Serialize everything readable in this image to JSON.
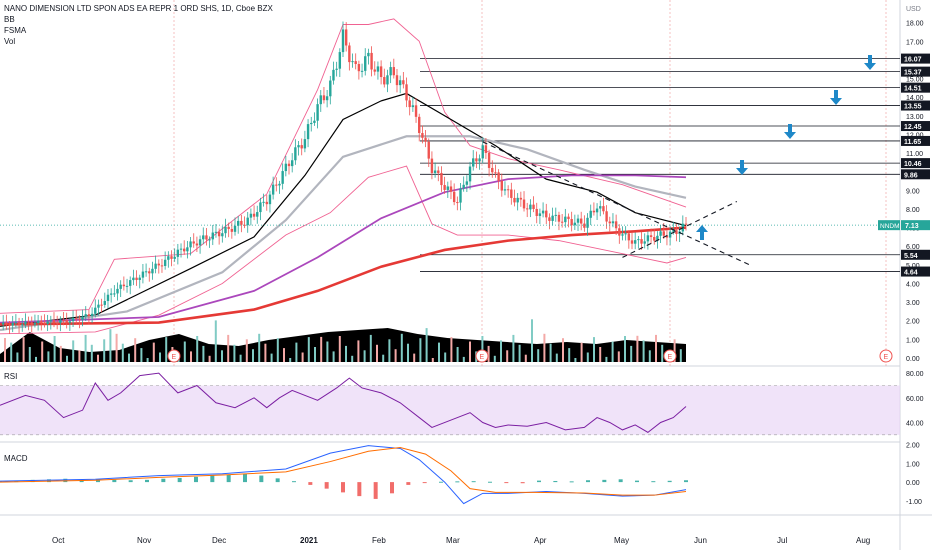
{
  "header": {
    "symbol_title": "NANO DIMENSION LTD SPON ADS EA REPR 1 ORD SHS, 1D, Cboe BZX",
    "indicators": [
      "BB",
      "FSMA",
      "Vol"
    ]
  },
  "colors": {
    "up": "#26a69a",
    "down": "#ef5350",
    "sma_short": "#000000",
    "sma_mid": "#b2b5be",
    "sma_long": "#ab47bc",
    "sma_200": "#e53935",
    "bb": "#f06292",
    "rsi": "#7b1fa2",
    "rsi_band": "#e9d7f7",
    "macd": "#2962ff",
    "signal": "#ff6d00",
    "arrow": "#1e88c8",
    "last_price": "#26a69a"
  },
  "chart_data": [
    {
      "type": "line",
      "pane": "price",
      "title": "NANO DIMENSION LTD SPON ADS EA REPR 1 ORD SHS, 1D, Cboe BZX",
      "y_axis_unit": "USD",
      "y_ticks": [
        0.0,
        1.0,
        2.0,
        3.0,
        4.0,
        5.0,
        6.0,
        7.0,
        8.0,
        9.0,
        10.0,
        11.0,
        12.0,
        13.0,
        14.0,
        15.0,
        16.0,
        17.0,
        18.0,
        19.0
      ],
      "ylim": [
        0,
        19
      ],
      "x_month_labels": [
        "Oct",
        "Nov",
        "Dec",
        "2021",
        "Feb",
        "Mar",
        "Apr",
        "May",
        "Jun",
        "Jul",
        "Aug"
      ],
      "close_series": [
        {
          "t": 0,
          "v": 1.8
        },
        {
          "t": 12,
          "v": 1.9
        },
        {
          "t": 22,
          "v": 2.0
        },
        {
          "t": 28,
          "v": 2.3
        },
        {
          "t": 36,
          "v": 3.6
        },
        {
          "t": 44,
          "v": 4.4
        },
        {
          "t": 52,
          "v": 5.2
        },
        {
          "t": 58,
          "v": 5.9
        },
        {
          "t": 64,
          "v": 6.4
        },
        {
          "t": 72,
          "v": 6.9
        },
        {
          "t": 78,
          "v": 7.4
        },
        {
          "t": 84,
          "v": 8.5
        },
        {
          "t": 88,
          "v": 9.6
        },
        {
          "t": 92,
          "v": 10.8
        },
        {
          "t": 96,
          "v": 11.8
        },
        {
          "t": 100,
          "v": 13.5
        },
        {
          "t": 104,
          "v": 14.6
        },
        {
          "t": 108,
          "v": 17.2
        },
        {
          "t": 112,
          "v": 15.4
        },
        {
          "t": 116,
          "v": 16.1
        },
        {
          "t": 120,
          "v": 15.0
        },
        {
          "t": 124,
          "v": 15.3
        },
        {
          "t": 128,
          "v": 14.1
        },
        {
          "t": 132,
          "v": 12.4
        },
        {
          "t": 136,
          "v": 10.2
        },
        {
          "t": 140,
          "v": 9.2
        },
        {
          "t": 144,
          "v": 8.4
        },
        {
          "t": 148,
          "v": 10.2
        },
        {
          "t": 152,
          "v": 11.2
        },
        {
          "t": 156,
          "v": 9.7
        },
        {
          "t": 160,
          "v": 8.8
        },
        {
          "t": 166,
          "v": 8.1
        },
        {
          "t": 172,
          "v": 7.6
        },
        {
          "t": 178,
          "v": 7.4
        },
        {
          "t": 184,
          "v": 7.2
        },
        {
          "t": 188,
          "v": 8.2
        },
        {
          "t": 192,
          "v": 7.3
        },
        {
          "t": 196,
          "v": 6.6
        },
        {
          "t": 200,
          "v": 6.2
        },
        {
          "t": 204,
          "v": 6.4
        },
        {
          "t": 208,
          "v": 6.6
        },
        {
          "t": 212,
          "v": 6.7
        },
        {
          "t": 216,
          "v": 7.13
        }
      ],
      "series": [
        {
          "name": "SMA 20",
          "points": [
            [
              0,
              1.7
            ],
            [
              30,
              2.3
            ],
            [
              60,
              4.8
            ],
            [
              80,
              6.5
            ],
            [
              96,
              9.8
            ],
            [
              108,
              12.8
            ],
            [
              120,
              13.8
            ],
            [
              128,
              14.2
            ],
            [
              140,
              13.0
            ],
            [
              156,
              11.4
            ],
            [
              172,
              9.6
            ],
            [
              188,
              8.9
            ],
            [
              200,
              7.8
            ],
            [
              216,
              7.1
            ]
          ]
        },
        {
          "name": "SMA 50",
          "points": [
            [
              0,
              1.5
            ],
            [
              40,
              2.5
            ],
            [
              70,
              4.6
            ],
            [
              90,
              7.4
            ],
            [
              108,
              10.8
            ],
            [
              128,
              11.9
            ],
            [
              148,
              11.9
            ],
            [
              166,
              11.2
            ],
            [
              184,
              10.1
            ],
            [
              200,
              9.2
            ],
            [
              216,
              8.6
            ]
          ]
        },
        {
          "name": "SMA 100",
          "points": [
            [
              0,
              1.9
            ],
            [
              50,
              2.2
            ],
            [
              80,
              3.6
            ],
            [
              100,
              5.4
            ],
            [
              120,
              7.5
            ],
            [
              140,
              8.9
            ],
            [
              160,
              9.6
            ],
            [
              180,
              9.8
            ],
            [
              200,
              9.8
            ],
            [
              216,
              9.7
            ]
          ]
        },
        {
          "name": "SMA 200",
          "points": [
            [
              0,
              1.8
            ],
            [
              50,
              1.9
            ],
            [
              80,
              2.6
            ],
            [
              100,
              3.6
            ],
            [
              120,
              4.9
            ],
            [
              140,
              5.8
            ],
            [
              160,
              6.3
            ],
            [
              180,
              6.6
            ],
            [
              200,
              6.8
            ],
            [
              216,
              7.0
            ]
          ]
        }
      ],
      "bollinger": {
        "upper": [
          [
            0,
            2.4
          ],
          [
            28,
            2.6
          ],
          [
            36,
            5.3
          ],
          [
            60,
            5.6
          ],
          [
            84,
            8.8
          ],
          [
            100,
            14.4
          ],
          [
            108,
            17.9
          ],
          [
            116,
            17.9
          ],
          [
            124,
            18.2
          ],
          [
            132,
            17.0
          ],
          [
            140,
            13.2
          ],
          [
            148,
            11.4
          ],
          [
            160,
            10.7
          ],
          [
            176,
            10.1
          ],
          [
            196,
            9.3
          ],
          [
            216,
            8.1
          ]
        ],
        "lower": [
          [
            0,
            1.3
          ],
          [
            30,
            1.4
          ],
          [
            50,
            2.3
          ],
          [
            70,
            4.0
          ],
          [
            90,
            6.6
          ],
          [
            104,
            7.8
          ],
          [
            116,
            9.7
          ],
          [
            128,
            10.3
          ],
          [
            136,
            7.2
          ],
          [
            144,
            6.6
          ],
          [
            160,
            6.6
          ],
          [
            176,
            6.3
          ],
          [
            196,
            5.6
          ],
          [
            210,
            5.1
          ],
          [
            216,
            5.4
          ]
        ]
      },
      "horizontal_levels": [
        "16.07",
        "15.37",
        "14.51",
        "13.55",
        "12.45",
        "11.65",
        "10.46",
        "9.86",
        "5.54",
        "4.64"
      ],
      "last_price": {
        "symbol": "NNDM",
        "value": "7.13"
      },
      "trendlines": [
        {
          "from": [
            152,
            11.6
          ],
          "to": [
            236,
            5.0
          ]
        },
        {
          "from": [
            196,
            5.4
          ],
          "to": [
            232,
            8.4
          ]
        }
      ],
      "volume": [
        0.2,
        0.75,
        0.35,
        0.25,
        0.3,
        0.55,
        0.7,
        0.45,
        0.4,
        0.55,
        0.65,
        0.75,
        0.8,
        0.85,
        0.7,
        0.6,
        0.55,
        0.5,
        0.45,
        0.5,
        0.45,
        0.55,
        0.5,
        0.45
      ],
      "earnings_markers": [
        "E",
        "E",
        "E",
        "E"
      ]
    },
    {
      "type": "line",
      "pane": "rsi",
      "title": "RSI",
      "y_ticks": [
        40.0,
        60.0,
        80.0
      ],
      "ylim": [
        25,
        85
      ],
      "band": [
        30,
        70
      ],
      "series": [
        {
          "name": "RSI",
          "points": [
            [
              0,
              54
            ],
            [
              8,
              62
            ],
            [
              14,
              58
            ],
            [
              20,
              44
            ],
            [
              26,
              50
            ],
            [
              30,
              72
            ],
            [
              34,
              58
            ],
            [
              38,
              64
            ],
            [
              44,
              78
            ],
            [
              50,
              80
            ],
            [
              56,
              64
            ],
            [
              62,
              70
            ],
            [
              68,
              56
            ],
            [
              74,
              52
            ],
            [
              80,
              60
            ],
            [
              84,
              52
            ],
            [
              88,
              60
            ],
            [
              92,
              66
            ],
            [
              100,
              58
            ],
            [
              106,
              68
            ],
            [
              110,
              76
            ],
            [
              114,
              68
            ],
            [
              120,
              64
            ],
            [
              126,
              56
            ],
            [
              132,
              44
            ],
            [
              136,
              36
            ],
            [
              142,
              42
            ],
            [
              148,
              48
            ],
            [
              152,
              40
            ],
            [
              156,
              36
            ],
            [
              160,
              38
            ],
            [
              166,
              37
            ],
            [
              172,
              40
            ],
            [
              178,
              34
            ],
            [
              184,
              36
            ],
            [
              188,
              44
            ],
            [
              192,
              40
            ],
            [
              196,
              34
            ],
            [
              200,
              38
            ],
            [
              204,
              32
            ],
            [
              208,
              40
            ],
            [
              212,
              44
            ],
            [
              216,
              53
            ]
          ]
        }
      ]
    },
    {
      "type": "line",
      "pane": "macd",
      "title": "MACD",
      "y_ticks": [
        -1.0,
        0.0,
        1.0,
        2.0
      ],
      "ylim": [
        -1.6,
        2.2
      ],
      "series": [
        {
          "name": "MACD",
          "points": [
            [
              0,
              0.05
            ],
            [
              30,
              0.15
            ],
            [
              50,
              0.35
            ],
            [
              70,
              0.45
            ],
            [
              90,
              0.7
            ],
            [
              104,
              1.55
            ],
            [
              116,
              1.95
            ],
            [
              126,
              1.8
            ],
            [
              132,
              1.2
            ],
            [
              140,
              0.0
            ],
            [
              146,
              -1.15
            ],
            [
              152,
              -0.6
            ],
            [
              160,
              -0.6
            ],
            [
              172,
              -0.5
            ],
            [
              184,
              -0.6
            ],
            [
              196,
              -0.75
            ],
            [
              206,
              -0.7
            ],
            [
              216,
              -0.4
            ]
          ]
        },
        {
          "name": "Signal",
          "points": [
            [
              0,
              0.0
            ],
            [
              30,
              0.1
            ],
            [
              50,
              0.25
            ],
            [
              70,
              0.38
            ],
            [
              90,
              0.55
            ],
            [
              104,
              1.1
            ],
            [
              116,
              1.65
            ],
            [
              126,
              1.85
            ],
            [
              134,
              1.5
            ],
            [
              142,
              0.6
            ],
            [
              148,
              -0.35
            ],
            [
              156,
              -0.55
            ],
            [
              168,
              -0.55
            ],
            [
              184,
              -0.58
            ],
            [
              196,
              -0.7
            ],
            [
              206,
              -0.7
            ],
            [
              216,
              -0.5
            ]
          ]
        }
      ],
      "histogram": [
        0.05,
        0.08,
        0.12,
        0.15,
        0.18,
        0.1,
        0.14,
        0.12,
        0.1,
        0.12,
        0.18,
        0.22,
        0.28,
        0.35,
        0.4,
        0.45,
        0.35,
        0.2,
        0.05,
        -0.15,
        -0.35,
        -0.55,
        -0.75,
        -0.9,
        -0.6,
        -0.15,
        -0.05,
        0.02,
        0.04,
        0.05,
        0.02,
        -0.03,
        -0.06,
        0.08,
        0.06,
        0.04,
        0.1,
        0.12,
        0.15,
        0.08,
        0.05,
        0.07,
        0.1
      ]
    }
  ]
}
